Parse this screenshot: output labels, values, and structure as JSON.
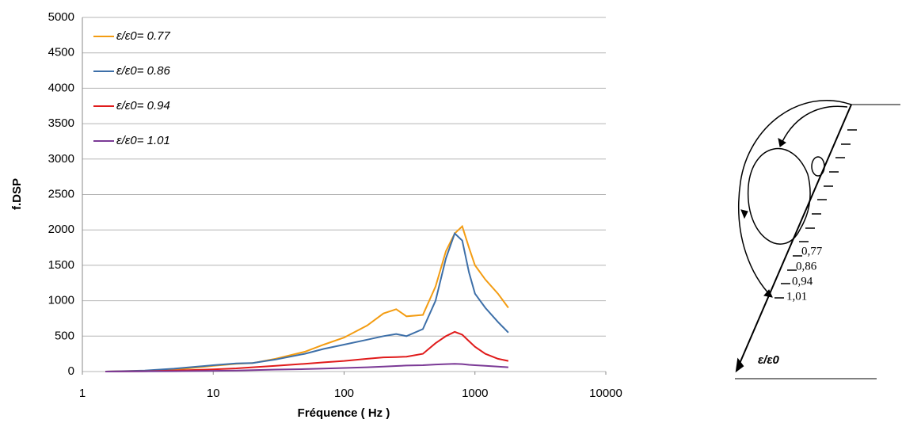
{
  "chart_data": {
    "type": "line",
    "xscale": "log",
    "grid": true,
    "legend": "upper-left",
    "xlabel": "Fréquence ( Hz )",
    "ylabel": "f.DSP",
    "xlim": [
      1,
      10000
    ],
    "xticks": [
      1,
      10,
      100,
      1000,
      10000
    ],
    "ylim": [
      0,
      5000
    ],
    "yticks": [
      0,
      500,
      1000,
      1500,
      2000,
      2500,
      3000,
      3500,
      4000,
      4500,
      5000
    ],
    "x": [
      1.5,
      3,
      5,
      10,
      15,
      20,
      30,
      50,
      70,
      100,
      150,
      200,
      250,
      300,
      400,
      500,
      600,
      700,
      800,
      900,
      1000,
      1200,
      1500,
      1800
    ],
    "series": [
      {
        "name": "ε/ε0= 0.77",
        "color": "#f39c12",
        "values": [
          0,
          10,
          25,
          80,
          110,
          120,
          180,
          280,
          380,
          480,
          650,
          820,
          880,
          780,
          800,
          1200,
          1700,
          1950,
          2050,
          1750,
          1500,
          1300,
          1100,
          900
        ]
      },
      {
        "name": "ε/ε0= 0.86",
        "color": "#3d6fa8",
        "values": [
          0,
          15,
          40,
          90,
          115,
          120,
          170,
          250,
          320,
          380,
          450,
          500,
          530,
          500,
          600,
          1000,
          1600,
          1950,
          1850,
          1400,
          1100,
          900,
          700,
          550
        ]
      },
      {
        "name": "ε/ε0= 0.94",
        "color": "#e01b1b",
        "values": [
          0,
          5,
          15,
          30,
          45,
          60,
          80,
          110,
          130,
          150,
          180,
          200,
          205,
          210,
          250,
          400,
          500,
          560,
          520,
          430,
          350,
          250,
          180,
          150
        ]
      },
      {
        "name": "ε/ε0= 1.01",
        "color": "#7b3a96",
        "values": [
          0,
          2,
          5,
          10,
          15,
          20,
          28,
          35,
          42,
          50,
          60,
          70,
          78,
          85,
          90,
          100,
          105,
          110,
          105,
          95,
          90,
          80,
          70,
          60
        ]
      }
    ]
  },
  "diagram": {
    "labels": [
      "0,77",
      "0,86",
      "0,94",
      "1,01"
    ],
    "axis_label": "ε/ε0"
  }
}
